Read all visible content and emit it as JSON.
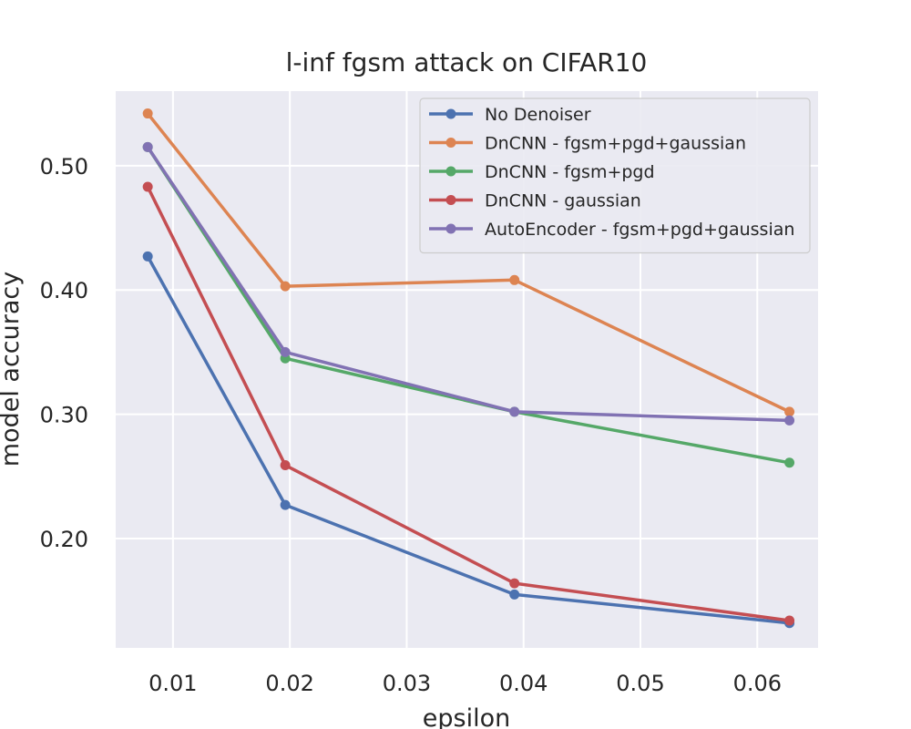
{
  "chart_data": {
    "type": "line",
    "title": "l-inf fgsm attack on CIFAR10",
    "xlabel": "epsilon",
    "ylabel": "model accuracy",
    "xlim": [
      0.0051,
      0.0652
    ],
    "ylim": [
      0.112,
      0.56
    ],
    "xticks": [
      0.01,
      0.02,
      0.03,
      0.04,
      0.05,
      0.06
    ],
    "xtick_labels": [
      "0.01",
      "0.02",
      "0.03",
      "0.04",
      "0.05",
      "0.06"
    ],
    "yticks": [
      0.2,
      0.3,
      0.4,
      0.5
    ],
    "ytick_labels": [
      "0.20",
      "0.30",
      "0.40",
      "0.50"
    ],
    "grid": true,
    "legend_position": "top-right",
    "x": [
      0.00784,
      0.01961,
      0.03922,
      0.06275
    ],
    "series": [
      {
        "name": "No Denoiser",
        "color": "#4c72b0",
        "values": [
          0.427,
          0.227,
          0.155,
          0.132
        ]
      },
      {
        "name": "DnCNN - fgsm+pgd+gaussian",
        "color": "#dd8452",
        "values": [
          0.542,
          0.403,
          0.408,
          0.302
        ]
      },
      {
        "name": "DnCNN - fgsm+pgd",
        "color": "#55a868",
        "values": [
          0.515,
          0.345,
          0.302,
          0.261
        ]
      },
      {
        "name": "DnCNN - gaussian",
        "color": "#c44e52",
        "values": [
          0.483,
          0.259,
          0.164,
          0.134
        ]
      },
      {
        "name": "AutoEncoder - fgsm+pgd+gaussian",
        "color": "#8172b3",
        "values": [
          0.515,
          0.35,
          0.302,
          0.295
        ]
      }
    ]
  }
}
